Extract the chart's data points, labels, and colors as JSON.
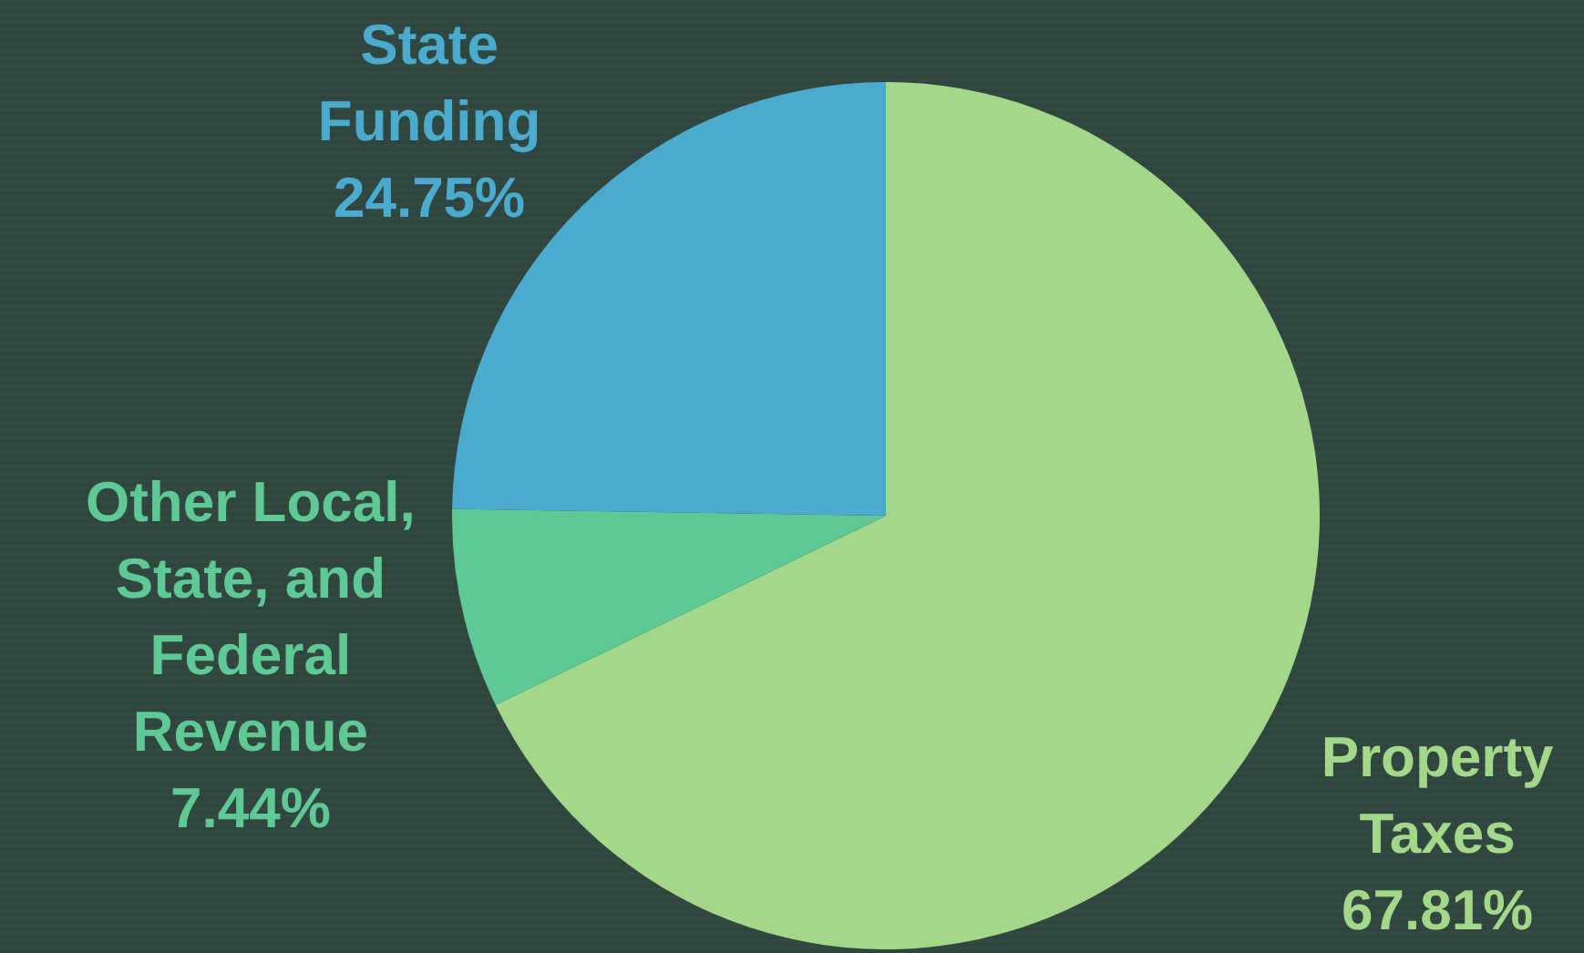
{
  "chart_data": {
    "type": "pie",
    "categories": [
      "Property Taxes",
      "Other Local, State, and Federal Revenue",
      "State Funding"
    ],
    "values": [
      67.81,
      7.44,
      24.75
    ],
    "colors": [
      "#a3d78a",
      "#5ec994",
      "#4aabce"
    ],
    "value_labels": [
      "67.81%",
      "7.44%",
      "24.75%"
    ],
    "legend": false
  }
}
